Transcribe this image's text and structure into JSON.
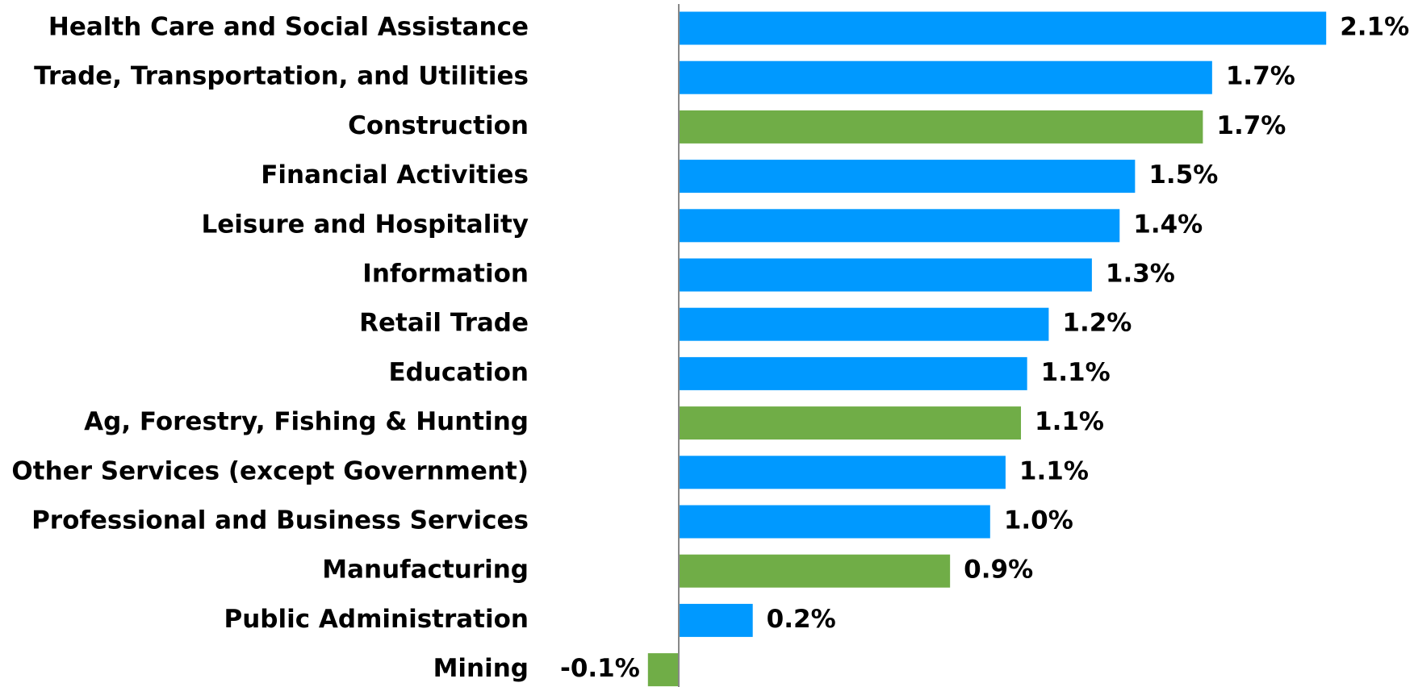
{
  "chart_data": {
    "type": "bar",
    "orientation": "horizontal",
    "categories": [
      "Health Care and Social Assistance",
      "Trade, Transportation, and Utilities",
      "Construction",
      "Financial Activities",
      "Leisure and Hospitality",
      "Information",
      "Retail Trade",
      "Education",
      "Ag, Forestry, Fishing & Hunting",
      "Other Services (except Government)",
      "Professional and Business Services",
      "Manufacturing",
      "Public Administration",
      "Mining"
    ],
    "values": [
      2.1,
      1.73,
      1.7,
      1.48,
      1.43,
      1.34,
      1.2,
      1.13,
      1.11,
      1.06,
      1.01,
      0.88,
      0.24,
      -0.1
    ],
    "value_labels": [
      "2.1%",
      "1.7%",
      "1.7%",
      "1.5%",
      "1.4%",
      "1.3%",
      "1.2%",
      "1.1%",
      "1.1%",
      "1.1%",
      "1.0%",
      "0.9%",
      "0.2%",
      "-0.1%"
    ],
    "colors": [
      "#0099ff",
      "#0099ff",
      "#70ad47",
      "#0099ff",
      "#0099ff",
      "#0099ff",
      "#0099ff",
      "#0099ff",
      "#70ad47",
      "#0099ff",
      "#0099ff",
      "#70ad47",
      "#0099ff",
      "#70ad47"
    ],
    "xlim": [
      -0.1,
      2.1
    ],
    "grid": false
  }
}
